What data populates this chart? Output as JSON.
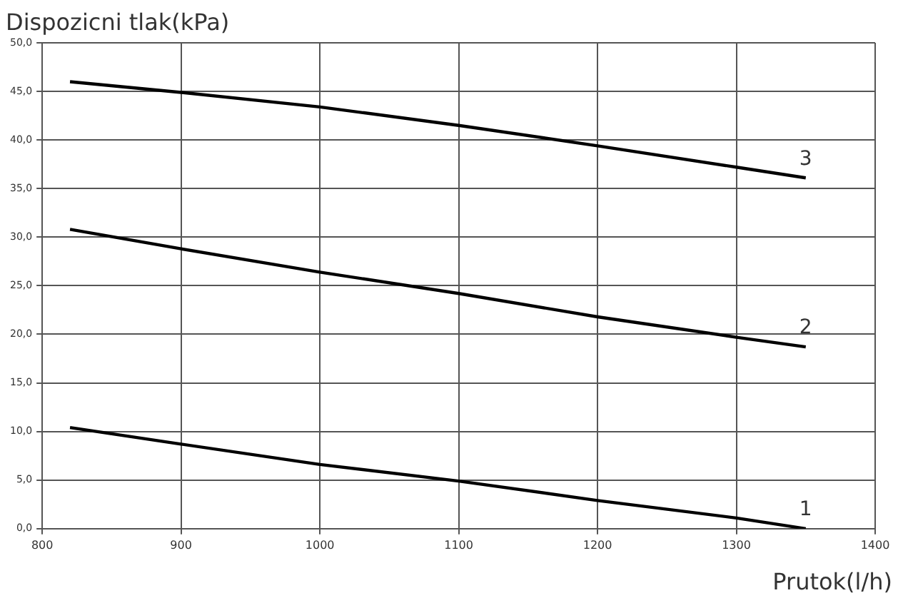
{
  "chart_data": {
    "type": "line",
    "ylabel": "Dispozicni tlak(kPa)",
    "xlabel": "Prutok(l/h)",
    "xlim": [
      800,
      1400
    ],
    "xticks": [
      800,
      900,
      1000,
      1100,
      1200,
      1300,
      1400
    ],
    "ylim": [
      0,
      50
    ],
    "yticks": [
      {
        "value": 0,
        "label": "0,0"
      },
      {
        "value": 5,
        "label": "5,0"
      },
      {
        "value": 10,
        "label": "10,0"
      },
      {
        "value": 15,
        "label": "15,0"
      },
      {
        "value": 20,
        "label": "20,0"
      },
      {
        "value": 25,
        "label": "25,0"
      },
      {
        "value": 30,
        "label": "30,0"
      },
      {
        "value": 35,
        "label": "35,0"
      },
      {
        "value": 40,
        "label": "40,0"
      },
      {
        "value": 45,
        "label": "45,0"
      },
      {
        "value": 50,
        "label": "50,0"
      }
    ],
    "grid": true,
    "legend": false,
    "marker": "none",
    "line_style": "solid",
    "series": [
      {
        "name": "1",
        "color": "#000000",
        "x": [
          820,
          900,
          1000,
          1100,
          1200,
          1300,
          1350
        ],
        "values": [
          10.4,
          8.7,
          6.6,
          4.9,
          2.9,
          1.1,
          0
        ]
      },
      {
        "name": "2",
        "color": "#000000",
        "x": [
          820,
          900,
          1000,
          1100,
          1200,
          1300,
          1350
        ],
        "values": [
          30.8,
          28.8,
          26.4,
          24.2,
          21.8,
          19.7,
          18.7
        ]
      },
      {
        "name": "3",
        "color": "#000000",
        "x": [
          820,
          900,
          1000,
          1100,
          1200,
          1300,
          1350
        ],
        "values": [
          46.0,
          44.9,
          43.4,
          41.5,
          39.4,
          37.2,
          36.1
        ]
      }
    ]
  }
}
